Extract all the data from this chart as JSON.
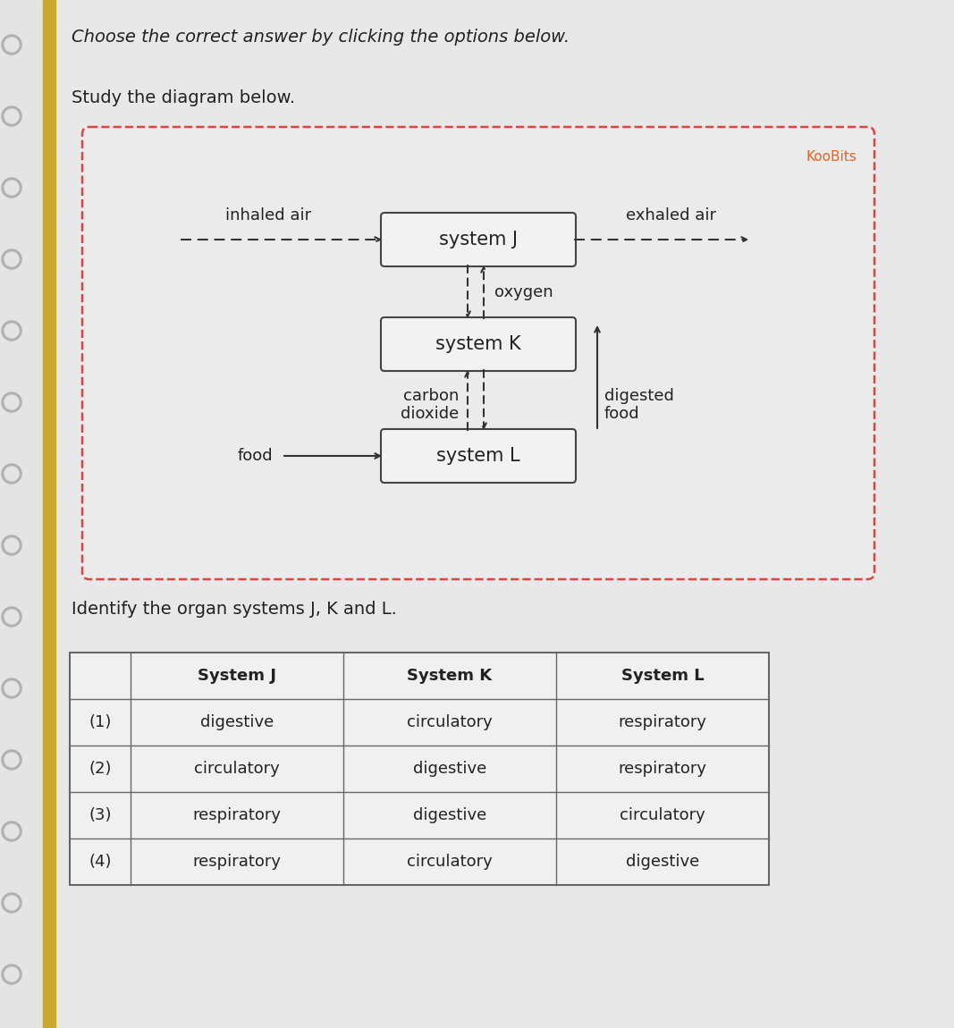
{
  "title_text": "Choose the correct answer by clicking the options below.",
  "subtitle_text": "Study the diagram below.",
  "koobits_color": "#e8601c",
  "koobits_text": "KooBits",
  "system_j": "system J",
  "system_k": "system K",
  "system_l": "system L",
  "inhaled_air": "inhaled air",
  "exhaled_air": "exhaled air",
  "oxygen": "oxygen",
  "carbon_dioxide_line1": "carbon",
  "carbon_dioxide_line2": "dioxide",
  "digested_food_line1": "digested",
  "digested_food_line2": "food",
  "food": "food",
  "question_text": "Identify the organ systems J, K and L.",
  "table_headers": [
    "",
    "System J",
    "System K",
    "System L"
  ],
  "table_rows": [
    [
      "(1)",
      "digestive",
      "circulatory",
      "respiratory"
    ],
    [
      "(2)",
      "circulatory",
      "digestive",
      "respiratory"
    ],
    [
      "(3)",
      "respiratory",
      "digestive",
      "circulatory"
    ],
    [
      "(4)",
      "respiratory",
      "circulatory",
      "digestive"
    ]
  ],
  "page_bg": "#e4e4e4",
  "content_bg": "#e8e8e8",
  "binding_color": "#c8a830",
  "diagram_bg": "#ebebeb",
  "diagram_border": "#dd4444",
  "box_bg": "#f2f2f2",
  "box_border": "#444444",
  "arrow_color": "#333333",
  "text_color": "#222222",
  "table_bg": "#f0f0f0",
  "table_border": "#666666"
}
